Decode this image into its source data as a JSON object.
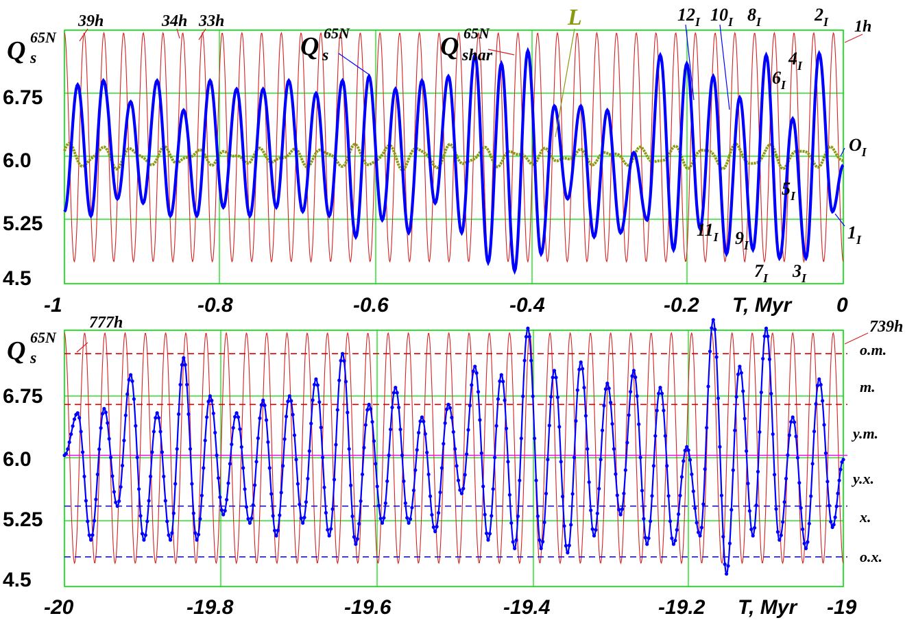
{
  "colors": {
    "grid": "#00dd00",
    "sin": "#d62020",
    "blue": "#0000ff",
    "olive": "#8a9a10",
    "magenta": "#ff00ff",
    "red_dash": "#dd0000",
    "blue_dash": "#0000cc",
    "leader": "#333333"
  },
  "chart_data": [
    {
      "type": "line",
      "xlabel": "T, Myr",
      "xlim": [
        -1,
        0
      ],
      "ylim": [
        4.5,
        7.6
      ],
      "x_ticks": [
        "-1",
        "-0.8",
        "-0.6",
        "-0.4",
        "-0.2",
        "0"
      ],
      "y_ticks": [
        "6.75",
        "6.0",
        "5.25",
        "4.5"
      ],
      "y_tick_values": [
        6.75,
        6.0,
        5.25,
        4.5
      ],
      "ylabel": {
        "main": "Q",
        "sub": "s",
        "sup": "65N"
      },
      "series": [
        {
          "name": "Q_s^65N",
          "x": [
            -1.0,
            -0.983,
            -0.966,
            -0.95,
            -0.932,
            -0.915,
            -0.899,
            -0.881,
            -0.864,
            -0.847,
            -0.83,
            -0.813,
            -0.796,
            -0.779,
            -0.762,
            -0.745,
            -0.728,
            -0.712,
            -0.694,
            -0.677,
            -0.66,
            -0.643,
            -0.626,
            -0.609,
            -0.592,
            -0.575,
            -0.558,
            -0.541,
            -0.524,
            -0.507,
            -0.49,
            -0.473,
            -0.456,
            -0.439,
            -0.422,
            -0.405,
            -0.388,
            -0.371,
            -0.354,
            -0.337,
            -0.32,
            -0.303,
            -0.286,
            -0.269,
            -0.252,
            -0.235,
            -0.218,
            -0.201,
            -0.184,
            -0.167,
            -0.15,
            -0.133,
            -0.116,
            -0.099,
            -0.082,
            -0.065,
            -0.048,
            -0.031,
            -0.014,
            0.0
          ],
          "values": [
            5.35,
            6.85,
            5.3,
            6.9,
            5.5,
            6.65,
            5.45,
            6.9,
            5.3,
            6.55,
            5.3,
            6.9,
            5.4,
            6.8,
            5.3,
            6.8,
            5.4,
            6.9,
            5.35,
            6.75,
            5.3,
            6.9,
            5.05,
            6.95,
            5.25,
            6.8,
            5.1,
            6.9,
            5.45,
            6.95,
            5.1,
            7.2,
            4.75,
            7.1,
            4.65,
            7.25,
            4.85,
            6.6,
            5.5,
            6.6,
            5.05,
            6.55,
            5.1,
            6.05,
            5.25,
            7.2,
            4.9,
            7.1,
            5.15,
            6.95,
            4.85,
            6.7,
            4.9,
            7.2,
            4.8,
            6.45,
            4.8,
            7.22,
            5.35,
            5.9
          ]
        },
        {
          "name": "L"
        }
      ],
      "annotations": [
        {
          "text": "39h"
        },
        {
          "text": "34h"
        },
        {
          "text": "33h"
        },
        {
          "text": "1h"
        },
        {
          "q": "Q",
          "sup": "65N",
          "sub": "s"
        },
        {
          "q": "Q",
          "sup": "65N",
          "sub": "shar"
        },
        {
          "text": "L"
        },
        {
          "num": "12",
          "sub": "I"
        },
        {
          "num": "10",
          "sub": "I"
        },
        {
          "num": "8",
          "sub": "I"
        },
        {
          "num": "2",
          "sub": "I"
        },
        {
          "num": "4",
          "sub": "I"
        },
        {
          "num": "6",
          "sub": "I"
        },
        {
          "num": "O",
          "sub": "I"
        },
        {
          "num": "5",
          "sub": "I"
        },
        {
          "num": "1",
          "sub": "I"
        },
        {
          "num": "11",
          "sub": "I"
        },
        {
          "num": "9",
          "sub": "I"
        },
        {
          "num": "7",
          "sub": "I"
        },
        {
          "num": "3",
          "sub": "I"
        }
      ]
    },
    {
      "type": "line",
      "xlabel": "T, Myr",
      "xlim": [
        -20,
        -19
      ],
      "ylim": [
        4.5,
        7.6
      ],
      "x_ticks": [
        "-20",
        "-19.8",
        "-19.6",
        "-19.4",
        "-19.2",
        "-19"
      ],
      "y_ticks": [
        "6.75",
        "6.0",
        "5.25",
        "4.5"
      ],
      "y_tick_values": [
        6.75,
        6.0,
        5.25,
        4.5
      ],
      "ylabel": {
        "main": "Q",
        "sub": "s",
        "sup": "65N"
      },
      "series": [
        {
          "x": [
            -20.0,
            -19.983,
            -19.966,
            -19.949,
            -19.932,
            -19.915,
            -19.898,
            -19.881,
            -19.864,
            -19.847,
            -19.83,
            -19.813,
            -19.796,
            -19.779,
            -19.762,
            -19.745,
            -19.728,
            -19.711,
            -19.694,
            -19.677,
            -19.66,
            -19.643,
            -19.626,
            -19.609,
            -19.592,
            -19.575,
            -19.558,
            -19.541,
            -19.524,
            -19.507,
            -19.49,
            -19.473,
            -19.456,
            -19.439,
            -19.422,
            -19.405,
            -19.388,
            -19.371,
            -19.354,
            -19.337,
            -19.32,
            -19.303,
            -19.286,
            -19.269,
            -19.252,
            -19.235,
            -19.218,
            -19.201,
            -19.184,
            -19.167,
            -19.15,
            -19.133,
            -19.116,
            -19.099,
            -19.082,
            -19.065,
            -19.048,
            -19.031,
            -19.014,
            -19.0
          ],
          "values": [
            6.05,
            6.55,
            5.05,
            6.6,
            5.45,
            7.0,
            5.05,
            6.55,
            5.05,
            7.2,
            5.05,
            6.75,
            5.35,
            6.55,
            5.25,
            6.7,
            5.1,
            6.75,
            5.25,
            6.95,
            5.1,
            7.25,
            5.0,
            6.65,
            5.25,
            6.85,
            5.25,
            6.5,
            5.15,
            6.65,
            5.6,
            7.1,
            5.05,
            7.0,
            4.95,
            7.55,
            4.95,
            7.05,
            4.9,
            7.15,
            5.1,
            6.9,
            5.35,
            7.05,
            5.0,
            6.85,
            5.0,
            6.15,
            5.1,
            7.65,
            4.65,
            7.1,
            5.1,
            7.55,
            5.05,
            6.5,
            4.95,
            6.95,
            5.2,
            6.0
          ]
        },
        {
          "name": "Q_s^65N"
        }
      ],
      "reference_lines": [
        {
          "value": 7.25,
          "style": "dashed",
          "color": "red"
        },
        {
          "value": 6.65,
          "style": "dashed",
          "color": "red"
        },
        {
          "value": 6.05,
          "style": "solid",
          "color": "magenta"
        },
        {
          "value": 5.45,
          "style": "dashed",
          "color": "blue"
        },
        {
          "value": 4.85,
          "style": "dashed",
          "color": "blue"
        }
      ],
      "zones": [
        "o.m.",
        "m.",
        "y.m.",
        "y.x.",
        "x.",
        "o.x."
      ],
      "annotations": [
        {
          "text": "777h"
        },
        {
          "text": "739h"
        }
      ]
    }
  ]
}
